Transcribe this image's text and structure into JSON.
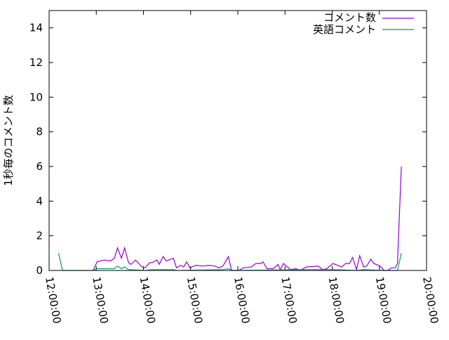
{
  "chart_data": {
    "type": "line",
    "title": "",
    "xlabel": "",
    "ylabel": "1秒毎のコメント数",
    "xlim": [
      "12:00:00",
      "20:00:00"
    ],
    "ylim": [
      0,
      15
    ],
    "x_ticks": [
      "12:00:00",
      "13:00:00",
      "14:00:00",
      "15:00:00",
      "16:00:00",
      "17:00:00",
      "18:00:00",
      "19:00:00",
      "20:00:00"
    ],
    "y_ticks": [
      0,
      2,
      4,
      6,
      8,
      10,
      12,
      14
    ],
    "grid": false,
    "legend_position": "top-right",
    "series": [
      {
        "name": "コメント数",
        "color": "#9400d3",
        "points": [
          [
            "12:56",
            0
          ],
          [
            "13:01",
            0.5
          ],
          [
            "13:10",
            0.6
          ],
          [
            "13:18",
            0.55
          ],
          [
            "13:23",
            0.7
          ],
          [
            "13:27",
            1.3
          ],
          [
            "13:32",
            0.7
          ],
          [
            "13:36",
            1.3
          ],
          [
            "13:41",
            0.45
          ],
          [
            "13:44",
            0.35
          ],
          [
            "13:50",
            0.6
          ],
          [
            "13:58",
            0.2
          ],
          [
            "14:02",
            0.15
          ],
          [
            "14:08",
            0.45
          ],
          [
            "14:11",
            0.45
          ],
          [
            "14:17",
            0.6
          ],
          [
            "14:20",
            0.35
          ],
          [
            "14:25",
            0.8
          ],
          [
            "14:29",
            0.55
          ],
          [
            "14:38",
            0.7
          ],
          [
            "14:42",
            0.15
          ],
          [
            "14:47",
            0.3
          ],
          [
            "14:51",
            0.2
          ],
          [
            "14:55",
            0.5
          ],
          [
            "14:59",
            0.15
          ],
          [
            "15:07",
            0.3
          ],
          [
            "15:16",
            0.25
          ],
          [
            "15:23",
            0.3
          ],
          [
            "15:31",
            0.25
          ],
          [
            "15:36",
            0.15
          ],
          [
            "15:41",
            0.25
          ],
          [
            "15:48",
            0.8
          ],
          [
            "15:52",
            0
          ],
          [
            "16:01",
            0
          ],
          [
            "16:07",
            0.15
          ],
          [
            "16:17",
            0.2
          ],
          [
            "16:23",
            0.4
          ],
          [
            "16:29",
            0.4
          ],
          [
            "16:32",
            0.5
          ],
          [
            "16:37",
            0.1
          ],
          [
            "16:45",
            0.1
          ],
          [
            "16:51",
            0.35
          ],
          [
            "16:54",
            0.05
          ],
          [
            "16:58",
            0.4
          ],
          [
            "17:07",
            0.05
          ],
          [
            "17:14",
            0.1
          ],
          [
            "17:19",
            0
          ],
          [
            "17:27",
            0.2
          ],
          [
            "17:42",
            0.25
          ],
          [
            "17:48",
            0.05
          ],
          [
            "17:53",
            0.1
          ],
          [
            "18:01",
            0.4
          ],
          [
            "18:12",
            0.2
          ],
          [
            "18:17",
            0.4
          ],
          [
            "18:22",
            0.4
          ],
          [
            "18:26",
            0.75
          ],
          [
            "18:31",
            0.05
          ],
          [
            "18:35",
            0.85
          ],
          [
            "18:40",
            0.2
          ],
          [
            "18:44",
            0.25
          ],
          [
            "18:49",
            0.65
          ],
          [
            "18:53",
            0.4
          ],
          [
            "19:01",
            0.25
          ],
          [
            "19:06",
            0
          ],
          [
            "19:11",
            0
          ],
          [
            "19:15",
            0.15
          ],
          [
            "19:20",
            0.15
          ],
          [
            "19:23",
            0.4
          ],
          [
            "19:28",
            6
          ]
        ]
      },
      {
        "name": "英語コメント",
        "color": "#009e73",
        "points": [
          [
            "12:12",
            1
          ],
          [
            "12:17",
            0
          ],
          [
            "12:56",
            0
          ],
          [
            "13:01",
            0.1
          ],
          [
            "13:23",
            0.1
          ],
          [
            "13:27",
            0.25
          ],
          [
            "13:32",
            0.1
          ],
          [
            "13:36",
            0.2
          ],
          [
            "13:41",
            0.05
          ],
          [
            "14:02",
            0
          ],
          [
            "14:11",
            0.05
          ],
          [
            "14:38",
            0.05
          ],
          [
            "14:42",
            0
          ],
          [
            "15:41",
            0.05
          ],
          [
            "15:48",
            0.1
          ],
          [
            "15:52",
            0
          ],
          [
            "17:27",
            0.05
          ],
          [
            "18:01",
            0.05
          ],
          [
            "18:31",
            0
          ],
          [
            "18:40",
            0.05
          ],
          [
            "19:06",
            0
          ],
          [
            "19:23",
            0
          ],
          [
            "19:28",
            1
          ]
        ]
      }
    ]
  }
}
